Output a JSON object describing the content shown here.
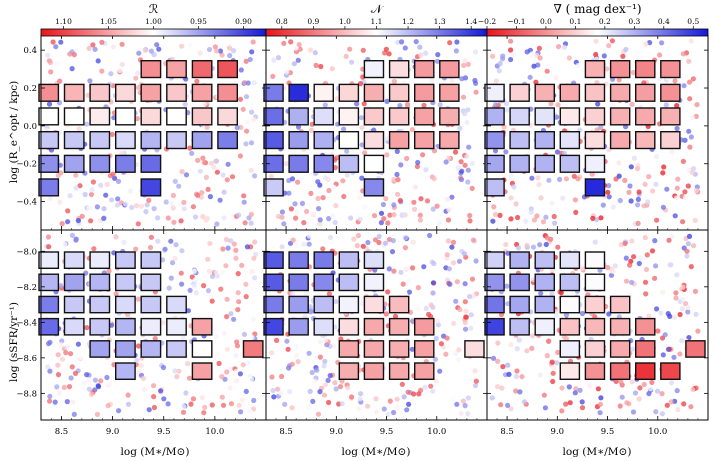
{
  "figure": {
    "xlabel": "log (M∗/M⊙)",
    "ylabel_top": "log (R_e^opt / kpc)",
    "ylabel_bottom": "log (sSFR/yr⁻¹)"
  },
  "colors": {
    "low": "#e8141c",
    "mid": "#ffffff",
    "high": "#1418d8",
    "edge": "#111111"
  },
  "chart_data": [
    {
      "type": "heatmap",
      "panel": "top-left",
      "title": "ℛ",
      "colorbar": {
        "vmin": 0.875,
        "vmax": 1.125,
        "ticks": [
          1.1,
          1.05,
          1.0,
          0.95,
          0.9
        ],
        "reversed": true,
        "tick_labels": [
          "1.10",
          "1.05",
          "1.00",
          "0.95",
          "0.90"
        ]
      },
      "xlabel": "log (M∗/M⊙)",
      "ylabel": "log (R_e^opt / kpc)",
      "xlim": [
        8.3,
        10.5
      ],
      "ylim": [
        -0.55,
        0.48
      ],
      "xticks": [
        8.5,
        9.0,
        9.5,
        10.0
      ],
      "yticks": [
        -0.4,
        -0.2,
        0.0,
        0.2,
        0.4
      ],
      "cells": [
        [
          9.375,
          0.3,
          1.06
        ],
        [
          9.625,
          0.3,
          1.05
        ],
        [
          9.875,
          0.3,
          1.08
        ],
        [
          10.125,
          0.3,
          1.09
        ],
        [
          8.375,
          0.175,
          1.06
        ],
        [
          8.625,
          0.175,
          1.04
        ],
        [
          8.875,
          0.175,
          1.03
        ],
        [
          9.125,
          0.175,
          1.02
        ],
        [
          9.375,
          0.175,
          1.05
        ],
        [
          9.625,
          0.175,
          1.03
        ],
        [
          9.875,
          0.175,
          1.05
        ],
        [
          10.125,
          0.175,
          1.06
        ],
        [
          8.375,
          0.05,
          1.0
        ],
        [
          8.625,
          0.05,
          1.0
        ],
        [
          8.875,
          0.05,
          1.01
        ],
        [
          9.125,
          0.05,
          1.0
        ],
        [
          9.375,
          0.05,
          1.02
        ],
        [
          9.625,
          0.05,
          1.0
        ],
        [
          9.875,
          0.05,
          1.03
        ],
        [
          10.125,
          0.05,
          1.02
        ],
        [
          8.375,
          -0.075,
          0.97
        ],
        [
          8.625,
          -0.075,
          0.97
        ],
        [
          8.875,
          -0.075,
          0.97
        ],
        [
          9.125,
          -0.075,
          0.98
        ],
        [
          9.375,
          -0.075,
          0.96
        ],
        [
          9.625,
          -0.075,
          0.97
        ],
        [
          9.875,
          -0.075,
          0.95
        ],
        [
          10.125,
          -0.075,
          0.93
        ],
        [
          8.375,
          -0.2,
          0.94
        ],
        [
          8.625,
          -0.2,
          0.95
        ],
        [
          8.875,
          -0.2,
          0.94
        ],
        [
          9.125,
          -0.2,
          0.93
        ],
        [
          9.375,
          -0.2,
          0.92
        ],
        [
          8.375,
          -0.325,
          0.93
        ],
        [
          9.375,
          -0.325,
          0.9
        ]
      ],
      "scatter": {
        "n": 340,
        "color_range": [
          0.9,
          1.1
        ]
      }
    },
    {
      "type": "heatmap",
      "panel": "top-middle",
      "title": "𝒩",
      "colorbar": {
        "vmin": 0.75,
        "vmax": 1.45,
        "ticks": [
          0.8,
          0.9,
          1.0,
          1.1,
          1.2,
          1.3,
          1.4
        ],
        "reversed": false,
        "tick_labels": [
          "0.8",
          "0.9",
          "1.0",
          "1.1",
          "1.2",
          "1.3",
          "1.4"
        ]
      },
      "xlabel": "log (M∗/M⊙)",
      "ylabel": "",
      "xlim": [
        8.3,
        10.5
      ],
      "ylim": [
        -0.55,
        0.48
      ],
      "xticks": [
        8.5,
        9.0,
        9.5,
        10.0
      ],
      "yticks": [
        -0.4,
        -0.2,
        0.0,
        0.2,
        0.4
      ],
      "cells": [
        [
          9.375,
          0.3,
          1.12
        ],
        [
          9.625,
          0.3,
          1.05
        ],
        [
          9.875,
          0.3,
          0.95
        ],
        [
          10.125,
          0.3,
          0.95
        ],
        [
          8.375,
          0.175,
          1.3
        ],
        [
          8.625,
          0.175,
          1.42
        ],
        [
          8.875,
          0.175,
          1.08
        ],
        [
          9.125,
          0.175,
          1.04
        ],
        [
          9.375,
          0.175,
          0.98
        ],
        [
          9.625,
          0.175,
          1.02
        ],
        [
          9.875,
          0.175,
          0.95
        ],
        [
          10.125,
          0.175,
          0.96
        ],
        [
          8.375,
          0.05,
          1.32
        ],
        [
          8.625,
          0.05,
          1.22
        ],
        [
          8.875,
          0.05,
          1.15
        ],
        [
          9.125,
          0.05,
          1.08
        ],
        [
          9.375,
          0.05,
          1.02
        ],
        [
          9.625,
          0.05,
          1.02
        ],
        [
          9.875,
          0.05,
          0.96
        ],
        [
          10.125,
          0.05,
          0.98
        ],
        [
          8.375,
          -0.075,
          1.35
        ],
        [
          8.625,
          -0.075,
          1.25
        ],
        [
          8.875,
          -0.075,
          1.22
        ],
        [
          9.125,
          -0.075,
          1.1
        ],
        [
          9.375,
          -0.075,
          1.05
        ],
        [
          9.625,
          -0.075,
          0.96
        ],
        [
          9.875,
          -0.075,
          0.96
        ],
        [
          10.125,
          -0.075,
          0.97
        ],
        [
          8.375,
          -0.2,
          1.32
        ],
        [
          8.625,
          -0.2,
          1.3
        ],
        [
          8.875,
          -0.2,
          1.28
        ],
        [
          9.125,
          -0.2,
          1.2
        ],
        [
          9.375,
          -0.2,
          1.1
        ],
        [
          8.375,
          -0.325,
          1.18
        ],
        [
          9.375,
          -0.325,
          1.28
        ]
      ],
      "scatter": {
        "n": 340,
        "color_range": [
          0.8,
          1.4
        ]
      }
    },
    {
      "type": "heatmap",
      "panel": "top-right",
      "title": "∇ ( mag dex⁻¹)",
      "colorbar": {
        "vmin": -0.2,
        "vmax": 0.55,
        "ticks": [
          -0.2,
          -0.1,
          0.0,
          0.1,
          0.2,
          0.3,
          0.4,
          0.5
        ],
        "reversed": false,
        "tick_labels": [
          "−0.2",
          "−0.1",
          "0.0",
          "0.1",
          "0.2",
          "0.3",
          "0.4",
          "0.5"
        ]
      },
      "xlabel": "log (M∗/M⊙)",
      "ylabel": "",
      "xlim": [
        8.3,
        10.5
      ],
      "ylim": [
        -0.55,
        0.48
      ],
      "xticks": [
        8.5,
        9.0,
        9.5,
        10.0
      ],
      "yticks": [
        -0.4,
        -0.2,
        0.0,
        0.2,
        0.4
      ],
      "cells": [
        [
          9.375,
          0.3,
          0.05
        ],
        [
          9.625,
          0.3,
          0.0
        ],
        [
          9.875,
          0.3,
          -0.02
        ],
        [
          10.125,
          0.3,
          0.0
        ],
        [
          8.375,
          0.175,
          0.2
        ],
        [
          8.625,
          0.175,
          0.1
        ],
        [
          8.875,
          0.175,
          0.05
        ],
        [
          9.125,
          0.175,
          0.04
        ],
        [
          9.375,
          0.175,
          0.08
        ],
        [
          9.625,
          0.175,
          0.04
        ],
        [
          9.875,
          0.175,
          0.02
        ],
        [
          10.125,
          0.175,
          0.0
        ],
        [
          8.375,
          0.05,
          0.3
        ],
        [
          8.625,
          0.05,
          0.24
        ],
        [
          8.875,
          0.05,
          0.22
        ],
        [
          9.125,
          0.05,
          0.14
        ],
        [
          9.375,
          0.05,
          0.1
        ],
        [
          9.625,
          0.05,
          0.05
        ],
        [
          9.875,
          0.05,
          0.04
        ],
        [
          10.125,
          0.05,
          0.05
        ],
        [
          8.375,
          -0.075,
          0.35
        ],
        [
          8.625,
          -0.075,
          0.28
        ],
        [
          8.875,
          -0.075,
          0.3
        ],
        [
          9.125,
          -0.075,
          0.22
        ],
        [
          9.375,
          -0.075,
          0.12
        ],
        [
          9.625,
          -0.075,
          0.04
        ],
        [
          9.875,
          -0.075,
          0.06
        ],
        [
          10.125,
          -0.075,
          0.1
        ],
        [
          8.375,
          -0.2,
          0.32
        ],
        [
          8.625,
          -0.2,
          0.3
        ],
        [
          8.875,
          -0.2,
          0.3
        ],
        [
          9.125,
          -0.2,
          0.28
        ],
        [
          9.375,
          -0.2,
          0.2
        ],
        [
          8.375,
          -0.325,
          0.28
        ],
        [
          9.375,
          -0.325,
          0.52
        ]
      ],
      "scatter": {
        "n": 340,
        "color_range": [
          -0.2,
          0.5
        ]
      }
    },
    {
      "type": "heatmap",
      "panel": "bottom-left",
      "title": "",
      "xlabel": "log (M∗/M⊙)",
      "ylabel": "log (sSFR/yr⁻¹)",
      "xlim": [
        8.3,
        10.5
      ],
      "ylim": [
        -8.95,
        -7.88
      ],
      "xticks": [
        8.5,
        9.0,
        9.5,
        10.0
      ],
      "yticks": [
        -8.8,
        -8.6,
        -8.4,
        -8.2,
        -8.0
      ],
      "cells": [
        [
          8.375,
          -8.05,
          0.99
        ],
        [
          8.625,
          -8.05,
          0.98
        ],
        [
          8.875,
          -8.05,
          0.99
        ],
        [
          9.125,
          -8.05,
          0.97
        ],
        [
          9.375,
          -8.05,
          0.97
        ],
        [
          8.375,
          -8.175,
          0.96
        ],
        [
          8.625,
          -8.175,
          0.95
        ],
        [
          8.875,
          -8.175,
          0.96
        ],
        [
          9.125,
          -8.175,
          0.97
        ],
        [
          9.375,
          -8.175,
          0.97
        ],
        [
          8.375,
          -8.3,
          0.93
        ],
        [
          8.625,
          -8.3,
          0.97
        ],
        [
          8.875,
          -8.3,
          0.97
        ],
        [
          9.125,
          -8.3,
          0.98
        ],
        [
          9.375,
          -8.3,
          0.97
        ],
        [
          9.625,
          -8.3,
          0.98
        ],
        [
          8.375,
          -8.425,
          0.92
        ],
        [
          8.625,
          -8.425,
          0.98
        ],
        [
          8.875,
          -8.425,
          0.97
        ],
        [
          9.125,
          -8.425,
          0.96
        ],
        [
          9.375,
          -8.425,
          0.99
        ],
        [
          9.625,
          -8.425,
          0.99
        ],
        [
          9.875,
          -8.425,
          1.05
        ],
        [
          8.875,
          -8.55,
          0.95
        ],
        [
          9.125,
          -8.55,
          0.95
        ],
        [
          9.375,
          -8.55,
          0.96
        ],
        [
          9.625,
          -8.55,
          0.97
        ],
        [
          9.875,
          -8.55,
          1.0
        ],
        [
          10.375,
          -8.55,
          1.07
        ],
        [
          9.125,
          -8.675,
          0.96
        ],
        [
          9.875,
          -8.675,
          1.05
        ]
      ],
      "scatter": {
        "n": 340,
        "color_range": [
          0.9,
          1.1
        ]
      }
    },
    {
      "type": "heatmap",
      "panel": "bottom-middle",
      "title": "",
      "xlabel": "log (M∗/M⊙)",
      "ylabel": "",
      "xlim": [
        8.3,
        10.5
      ],
      "ylim": [
        -8.95,
        -7.88
      ],
      "xticks": [
        8.5,
        9.0,
        9.5,
        10.0
      ],
      "yticks": [
        -8.8,
        -8.6,
        -8.4,
        -8.2,
        -8.0
      ],
      "cells": [
        [
          8.375,
          -8.05,
          1.35
        ],
        [
          8.625,
          -8.05,
          1.3
        ],
        [
          8.875,
          -8.05,
          1.3
        ],
        [
          9.125,
          -8.05,
          1.2
        ],
        [
          9.375,
          -8.05,
          1.15
        ],
        [
          8.375,
          -8.175,
          1.35
        ],
        [
          8.625,
          -8.175,
          1.3
        ],
        [
          8.875,
          -8.175,
          1.28
        ],
        [
          9.125,
          -8.175,
          1.2
        ],
        [
          9.375,
          -8.175,
          1.12
        ],
        [
          8.375,
          -8.3,
          1.3
        ],
        [
          8.625,
          -8.3,
          1.25
        ],
        [
          8.875,
          -8.3,
          1.2
        ],
        [
          9.125,
          -8.3,
          1.12
        ],
        [
          9.375,
          -8.3,
          1.05
        ],
        [
          9.625,
          -8.3,
          1.0
        ],
        [
          8.375,
          -8.425,
          1.38
        ],
        [
          8.625,
          -8.425,
          1.25
        ],
        [
          8.875,
          -8.425,
          1.15
        ],
        [
          9.125,
          -8.425,
          1.05
        ],
        [
          9.375,
          -8.425,
          0.97
        ],
        [
          9.625,
          -8.425,
          0.98
        ],
        [
          9.875,
          -8.425,
          0.95
        ],
        [
          9.125,
          -8.55,
          0.97
        ],
        [
          9.375,
          -8.55,
          0.97
        ],
        [
          9.625,
          -8.55,
          0.98
        ],
        [
          9.875,
          -8.55,
          0.96
        ],
        [
          10.375,
          -8.55,
          1.05
        ],
        [
          9.125,
          -8.675,
          0.98
        ],
        [
          9.375,
          -8.675,
          0.96
        ],
        [
          9.625,
          -8.675,
          0.97
        ],
        [
          9.875,
          -8.675,
          0.96
        ]
      ],
      "scatter": {
        "n": 340,
        "color_range": [
          0.8,
          1.4
        ]
      }
    },
    {
      "type": "heatmap",
      "panel": "bottom-right",
      "title": "",
      "xlabel": "log (M∗/M⊙)",
      "ylabel": "",
      "xlim": [
        8.3,
        10.5
      ],
      "ylim": [
        -8.95,
        -7.88
      ],
      "xticks": [
        8.5,
        9.0,
        9.5,
        10.0
      ],
      "yticks": [
        -8.8,
        -8.6,
        -8.4,
        -8.2,
        -8.0
      ],
      "cells": [
        [
          8.375,
          -8.05,
          0.25
        ],
        [
          8.625,
          -8.05,
          0.3
        ],
        [
          8.875,
          -8.05,
          0.28
        ],
        [
          9.125,
          -8.05,
          0.22
        ],
        [
          9.375,
          -8.05,
          0.18
        ],
        [
          8.375,
          -8.175,
          0.35
        ],
        [
          8.625,
          -8.175,
          0.35
        ],
        [
          8.875,
          -8.175,
          0.3
        ],
        [
          9.125,
          -8.175,
          0.28
        ],
        [
          9.375,
          -8.175,
          0.18
        ],
        [
          8.375,
          -8.3,
          0.4
        ],
        [
          8.625,
          -8.3,
          0.32
        ],
        [
          8.875,
          -8.3,
          0.3
        ],
        [
          9.125,
          -8.3,
          0.18
        ],
        [
          9.375,
          -8.3,
          0.1
        ],
        [
          9.625,
          -8.3,
          0.08
        ],
        [
          8.375,
          -8.425,
          0.48
        ],
        [
          8.625,
          -8.425,
          0.28
        ],
        [
          8.875,
          -8.425,
          0.2
        ],
        [
          9.125,
          -8.425,
          0.08
        ],
        [
          9.375,
          -8.425,
          0.06
        ],
        [
          9.625,
          -8.425,
          0.05
        ],
        [
          9.875,
          -8.425,
          0.0
        ],
        [
          9.125,
          -8.55,
          0.2
        ],
        [
          9.375,
          -8.55,
          0.1
        ],
        [
          9.625,
          -8.55,
          0.04
        ],
        [
          9.875,
          -8.55,
          -0.05
        ],
        [
          10.375,
          -8.55,
          -0.05
        ],
        [
          9.125,
          -8.675,
          0.14
        ],
        [
          9.375,
          -8.675,
          0.0
        ],
        [
          9.625,
          -8.675,
          -0.05
        ],
        [
          9.875,
          -8.675,
          -0.15
        ],
        [
          10.125,
          -8.675,
          -0.12
        ]
      ],
      "scatter": {
        "n": 340,
        "color_range": [
          -0.2,
          0.5
        ]
      }
    }
  ]
}
